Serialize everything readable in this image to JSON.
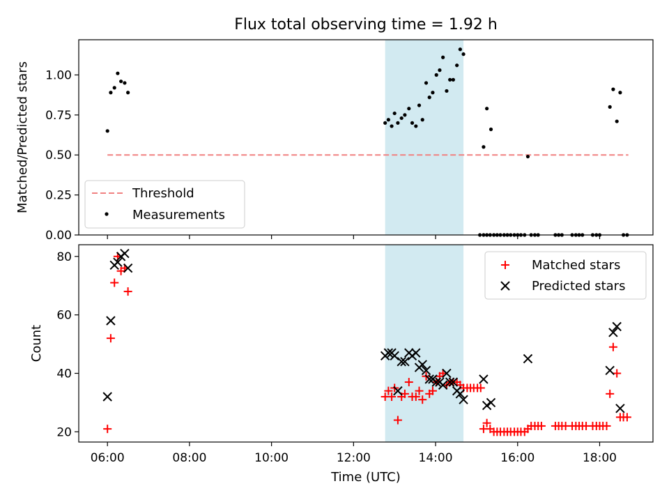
{
  "chart_data": {
    "title": "Flux total observing time = 1.92 h",
    "shaded_region": {
      "x_start": 12.77,
      "x_end": 14.68,
      "color": "#add8e6"
    },
    "x_range": [
      5.3,
      19.3
    ],
    "x_ticks": [
      {
        "value": 6,
        "label": "06:00"
      },
      {
        "value": 8,
        "label": "08:00"
      },
      {
        "value": 10,
        "label": "10:00"
      },
      {
        "value": 12,
        "label": "12:00"
      },
      {
        "value": 14,
        "label": "14:00"
      },
      {
        "value": 16,
        "label": "16:00"
      },
      {
        "value": 18,
        "label": "18:00"
      }
    ],
    "xlabel": "Time (UTC)",
    "top": {
      "type": "scatter",
      "ylabel": "Matched/Predicted stars",
      "ylim": [
        0.0,
        1.22
      ],
      "y_ticks": [
        "0.00",
        "0.25",
        "0.50",
        "0.75",
        "1.00"
      ],
      "threshold": {
        "name": "Threshold",
        "value": 0.5,
        "x_range": [
          6.0,
          18.7
        ],
        "color": "#f08080"
      },
      "legend_position": "lower-left",
      "series": [
        {
          "name": "Measurements",
          "color": "#000000",
          "points": [
            [
              6.0,
              0.65
            ],
            [
              6.08,
              0.89
            ],
            [
              6.17,
              0.92
            ],
            [
              6.25,
              1.01
            ],
            [
              6.33,
              0.96
            ],
            [
              6.42,
              0.95
            ],
            [
              6.5,
              0.89
            ],
            [
              12.77,
              0.7
            ],
            [
              12.85,
              0.72
            ],
            [
              12.93,
              0.68
            ],
            [
              13.0,
              0.76
            ],
            [
              13.08,
              0.7
            ],
            [
              13.17,
              0.73
            ],
            [
              13.25,
              0.75
            ],
            [
              13.35,
              0.79
            ],
            [
              13.43,
              0.7
            ],
            [
              13.52,
              0.68
            ],
            [
              13.6,
              0.81
            ],
            [
              13.68,
              0.72
            ],
            [
              13.77,
              0.95
            ],
            [
              13.85,
              0.86
            ],
            [
              13.93,
              0.89
            ],
            [
              14.02,
              1.0
            ],
            [
              14.1,
              1.03
            ],
            [
              14.18,
              1.11
            ],
            [
              14.27,
              0.9
            ],
            [
              14.35,
              0.97
            ],
            [
              14.43,
              0.97
            ],
            [
              14.52,
              1.06
            ],
            [
              14.6,
              1.16
            ],
            [
              14.68,
              1.13
            ],
            [
              15.17,
              0.55
            ],
            [
              15.25,
              0.79
            ],
            [
              15.35,
              0.66
            ],
            [
              16.25,
              0.49
            ],
            [
              18.25,
              0.8
            ],
            [
              18.33,
              0.91
            ],
            [
              18.42,
              0.71
            ],
            [
              18.5,
              0.89
            ],
            [
              15.08,
              0.0
            ],
            [
              15.17,
              0.0
            ],
            [
              15.25,
              0.0
            ],
            [
              15.33,
              0.0
            ],
            [
              15.42,
              0.0
            ],
            [
              15.5,
              0.0
            ],
            [
              15.58,
              0.0
            ],
            [
              15.67,
              0.0
            ],
            [
              15.75,
              0.0
            ],
            [
              15.83,
              0.0
            ],
            [
              15.92,
              0.0
            ],
            [
              16.0,
              0.0
            ],
            [
              16.08,
              0.0
            ],
            [
              16.17,
              0.0
            ],
            [
              16.33,
              0.0
            ],
            [
              16.42,
              0.0
            ],
            [
              16.5,
              0.0
            ],
            [
              16.92,
              0.0
            ],
            [
              17.0,
              0.0
            ],
            [
              17.08,
              0.0
            ],
            [
              17.33,
              0.0
            ],
            [
              17.42,
              0.0
            ],
            [
              17.5,
              0.0
            ],
            [
              17.58,
              0.0
            ],
            [
              17.83,
              0.0
            ],
            [
              17.92,
              0.0
            ],
            [
              18.0,
              0.0
            ],
            [
              18.58,
              0.0
            ],
            [
              18.67,
              0.0
            ]
          ]
        }
      ]
    },
    "bottom": {
      "type": "scatter",
      "ylabel": "Count",
      "ylim": [
        16.5,
        84.0
      ],
      "y_ticks": [
        "20",
        "40",
        "60",
        "80"
      ],
      "legend_position": "upper-right",
      "series": [
        {
          "name": "Matched stars",
          "marker": "plus",
          "color": "#ff0000",
          "points": [
            [
              6.0,
              21
            ],
            [
              6.08,
              52
            ],
            [
              6.17,
              71
            ],
            [
              6.25,
              80
            ],
            [
              6.33,
              75
            ],
            [
              6.42,
              76
            ],
            [
              6.5,
              68
            ],
            [
              12.77,
              32
            ],
            [
              12.85,
              34
            ],
            [
              12.93,
              32
            ],
            [
              13.0,
              35
            ],
            [
              13.08,
              24
            ],
            [
              13.17,
              32
            ],
            [
              13.25,
              33
            ],
            [
              13.35,
              37
            ],
            [
              13.43,
              32
            ],
            [
              13.52,
              32
            ],
            [
              13.6,
              34
            ],
            [
              13.68,
              31
            ],
            [
              13.77,
              39
            ],
            [
              13.85,
              33
            ],
            [
              13.93,
              34
            ],
            [
              14.02,
              37
            ],
            [
              14.1,
              39
            ],
            [
              14.18,
              40
            ],
            [
              14.27,
              36
            ],
            [
              14.35,
              37
            ],
            [
              14.43,
              37
            ],
            [
              14.52,
              37
            ],
            [
              14.6,
              36
            ],
            [
              14.68,
              35
            ],
            [
              14.77,
              35
            ],
            [
              14.85,
              35
            ],
            [
              14.93,
              35
            ],
            [
              15.02,
              35
            ],
            [
              15.1,
              35
            ],
            [
              15.17,
              21
            ],
            [
              15.25,
              23
            ],
            [
              15.33,
              21
            ],
            [
              15.42,
              20
            ],
            [
              15.5,
              20
            ],
            [
              15.58,
              20
            ],
            [
              15.67,
              20
            ],
            [
              15.75,
              20
            ],
            [
              15.83,
              20
            ],
            [
              15.92,
              20
            ],
            [
              16.0,
              20
            ],
            [
              16.08,
              20
            ],
            [
              16.17,
              20
            ],
            [
              16.25,
              21
            ],
            [
              16.33,
              22
            ],
            [
              16.42,
              22
            ],
            [
              16.5,
              22
            ],
            [
              16.58,
              22
            ],
            [
              16.92,
              22
            ],
            [
              17.0,
              22
            ],
            [
              17.08,
              22
            ],
            [
              17.17,
              22
            ],
            [
              17.33,
              22
            ],
            [
              17.42,
              22
            ],
            [
              17.5,
              22
            ],
            [
              17.58,
              22
            ],
            [
              17.67,
              22
            ],
            [
              17.83,
              22
            ],
            [
              17.92,
              22
            ],
            [
              18.0,
              22
            ],
            [
              18.08,
              22
            ],
            [
              18.17,
              22
            ],
            [
              18.25,
              33
            ],
            [
              18.33,
              49
            ],
            [
              18.42,
              40
            ],
            [
              18.5,
              25
            ],
            [
              18.58,
              25
            ],
            [
              18.67,
              25
            ]
          ]
        },
        {
          "name": "Predicted stars",
          "marker": "x",
          "color": "#000000",
          "points": [
            [
              6.0,
              32
            ],
            [
              6.08,
              58
            ],
            [
              6.17,
              77
            ],
            [
              6.25,
              78
            ],
            [
              6.33,
              80
            ],
            [
              6.42,
              81
            ],
            [
              6.5,
              76
            ],
            [
              12.77,
              46
            ],
            [
              12.85,
              47
            ],
            [
              12.93,
              47
            ],
            [
              13.0,
              46
            ],
            [
              13.08,
              34
            ],
            [
              13.17,
              44
            ],
            [
              13.25,
              44
            ],
            [
              13.35,
              47
            ],
            [
              13.43,
              46
            ],
            [
              13.52,
              47
            ],
            [
              13.6,
              42
            ],
            [
              13.68,
              43
            ],
            [
              13.77,
              41
            ],
            [
              13.85,
              38
            ],
            [
              13.93,
              38
            ],
            [
              14.02,
              37
            ],
            [
              14.1,
              37
            ],
            [
              14.18,
              36
            ],
            [
              14.27,
              40
            ],
            [
              14.35,
              37
            ],
            [
              14.43,
              37
            ],
            [
              14.52,
              34
            ],
            [
              14.6,
              33
            ],
            [
              14.68,
              31
            ],
            [
              15.17,
              38
            ],
            [
              15.25,
              29
            ],
            [
              15.35,
              30
            ],
            [
              16.25,
              45
            ],
            [
              18.25,
              41
            ],
            [
              18.33,
              54
            ],
            [
              18.42,
              56
            ],
            [
              18.5,
              28
            ]
          ]
        }
      ]
    }
  }
}
